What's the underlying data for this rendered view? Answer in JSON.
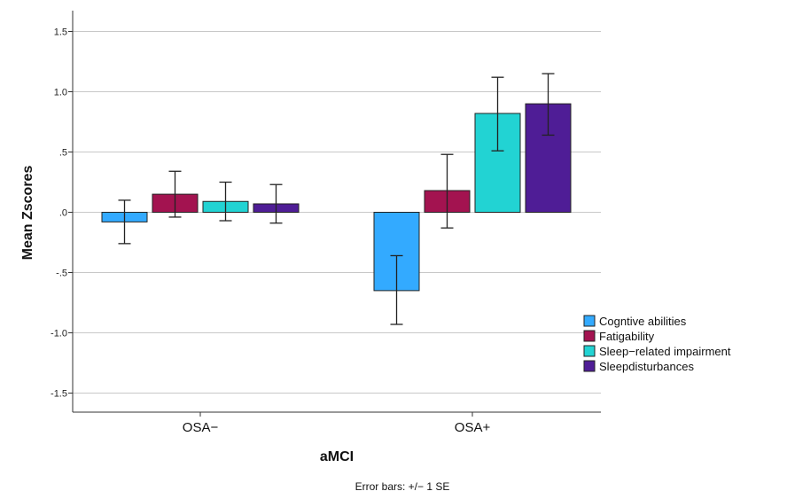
{
  "chart_data": {
    "type": "bar",
    "xlabel": "aMCI",
    "ylabel": "Mean Zscores",
    "ylim": [
      -1.7,
      1.7
    ],
    "yticks": [
      1.5,
      1.0,
      0.5,
      0.0,
      -0.5,
      -1.0,
      -1.5
    ],
    "ytick_labels": [
      "1.5",
      "1.0",
      ".5",
      ".0",
      "-.5",
      "-1.0",
      "-1.5"
    ],
    "grid": "horizontal",
    "legend_position": "right",
    "categories": [
      "OSA−",
      "OSA+"
    ],
    "series": [
      {
        "name": "Cogntive abilities",
        "color": "#33aaff",
        "values": [
          -0.08,
          -0.65
        ],
        "error_low": [
          -0.26,
          -0.93
        ],
        "error_high": [
          0.1,
          -0.36
        ]
      },
      {
        "name": "Fatigability",
        "color": "#a31350",
        "values": [
          0.15,
          0.18
        ],
        "error_low": [
          -0.04,
          -0.13
        ],
        "error_high": [
          0.34,
          0.48
        ]
      },
      {
        "name": "Sleep−related impairment",
        "color": "#22d3d3",
        "values": [
          0.09,
          0.82
        ],
        "error_low": [
          -0.07,
          0.51
        ],
        "error_high": [
          0.25,
          1.12
        ]
      },
      {
        "name": "Sleepdisturbances",
        "color": "#4f1d96",
        "values": [
          0.07,
          0.9
        ],
        "error_low": [
          -0.09,
          0.64
        ],
        "error_high": [
          0.23,
          1.15
        ]
      }
    ],
    "footnote": "Error bars: +/− 1 SE"
  }
}
